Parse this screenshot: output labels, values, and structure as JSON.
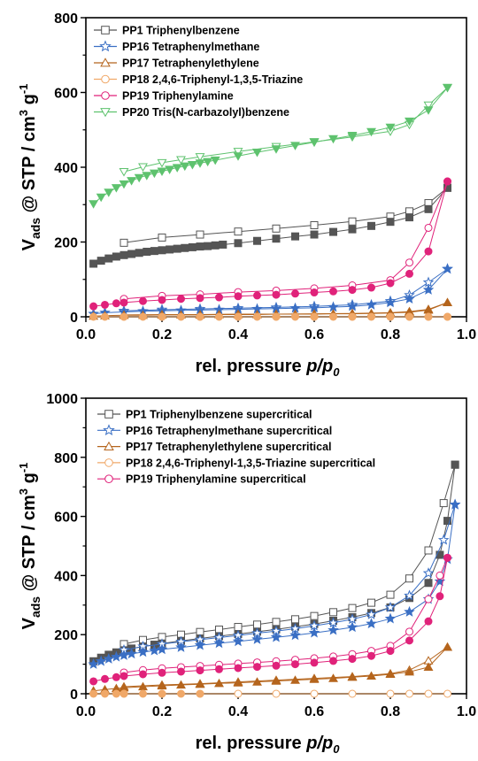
{
  "chart_data": [
    {
      "type": "scatter",
      "xlabel": "rel. pressure p/p0",
      "xlabel_parts": {
        "prefix": "rel. pressure ",
        "p": "p",
        "slash": "/",
        "p0": "p",
        "sub0": "0"
      },
      "ylabel": "Vads @ STP / cm3 g-1",
      "ylabel_parts": {
        "V": "V",
        "ads": "ads",
        "mid": " @ STP / cm",
        "sup3": "3",
        "g": " g",
        "supm1": "-1"
      },
      "xlim": [
        0,
        1.0
      ],
      "ylim": [
        0,
        800
      ],
      "xticks": [
        "0.0",
        "0.2",
        "0.4",
        "0.6",
        "0.8",
        "1.0"
      ],
      "yticks": [
        "0",
        "200",
        "400",
        "600",
        "800"
      ],
      "legend_position": "top-left",
      "series": [
        {
          "name": "PP1 Triphenylbenzene",
          "color": "#555555",
          "marker": "square",
          "ads_x": [
            0.02,
            0.04,
            0.06,
            0.08,
            0.1,
            0.12,
            0.14,
            0.16,
            0.18,
            0.2,
            0.22,
            0.24,
            0.26,
            0.28,
            0.3,
            0.32,
            0.34,
            0.36,
            0.4,
            0.45,
            0.5,
            0.55,
            0.6,
            0.65,
            0.7,
            0.75,
            0.8,
            0.85,
            0.9,
            0.95
          ],
          "ads_y": [
            142,
            150,
            156,
            161,
            165,
            168,
            171,
            174,
            176,
            178,
            180,
            182,
            184,
            186,
            188,
            189,
            191,
            193,
            197,
            203,
            209,
            215,
            220,
            227,
            234,
            243,
            254,
            266,
            288,
            345
          ],
          "des_x": [
            0.1,
            0.2,
            0.3,
            0.4,
            0.5,
            0.6,
            0.7,
            0.8,
            0.85,
            0.9,
            0.95
          ],
          "des_y": [
            198,
            212,
            220,
            228,
            236,
            245,
            255,
            268,
            282,
            304,
            345
          ]
        },
        {
          "name": "PP16 Tetraphenylmethane",
          "color": "#3a6fc4",
          "marker": "star",
          "ads_x": [
            0.02,
            0.05,
            0.1,
            0.15,
            0.2,
            0.25,
            0.3,
            0.35,
            0.4,
            0.45,
            0.5,
            0.55,
            0.6,
            0.65,
            0.7,
            0.75,
            0.8,
            0.85,
            0.9,
            0.95
          ],
          "ads_y": [
            8,
            11,
            13,
            15,
            16,
            17,
            18,
            19,
            20,
            21,
            22,
            23,
            24,
            26,
            28,
            32,
            38,
            48,
            72,
            128
          ],
          "des_x": [
            0.1,
            0.2,
            0.3,
            0.4,
            0.5,
            0.6,
            0.7,
            0.8,
            0.85,
            0.9,
            0.95
          ],
          "des_y": [
            16,
            19,
            21,
            23,
            25,
            28,
            32,
            42,
            58,
            92,
            128
          ]
        },
        {
          "name": "PP17 Tetraphenylethylene",
          "color": "#b5651d",
          "marker": "triangle",
          "ads_x": [
            0.02,
            0.05,
            0.1,
            0.15,
            0.2,
            0.25,
            0.3,
            0.35,
            0.4,
            0.45,
            0.5,
            0.55,
            0.6,
            0.65,
            0.7,
            0.75,
            0.8,
            0.85,
            0.9,
            0.95
          ],
          "ads_y": [
            2,
            3,
            4,
            4,
            5,
            5,
            5,
            6,
            6,
            6,
            7,
            7,
            7,
            8,
            8,
            9,
            10,
            12,
            18,
            38
          ],
          "des_x": [
            0.1,
            0.2,
            0.3,
            0.4,
            0.5,
            0.6,
            0.7,
            0.8,
            0.85,
            0.9,
            0.95
          ],
          "des_y": [
            5,
            6,
            6,
            7,
            7,
            8,
            9,
            11,
            14,
            20,
            38
          ]
        },
        {
          "name": "PP18 2,4,6-Triphenyl-1,3,5-Triazine",
          "color": "#f0a868",
          "marker": "circle",
          "ads_x": [
            0.02,
            0.05,
            0.1,
            0.15,
            0.2,
            0.25,
            0.3,
            0.35,
            0.4,
            0.45,
            0.5,
            0.55,
            0.6,
            0.65,
            0.7,
            0.75,
            0.8,
            0.85,
            0.9,
            0.95
          ],
          "ads_y": [
            0,
            0,
            0,
            0,
            0,
            0,
            0,
            0,
            0,
            0,
            0,
            0,
            0,
            0,
            0,
            0,
            0,
            0,
            0,
            0
          ],
          "des_x": [
            0.1,
            0.2,
            0.3,
            0.4,
            0.5,
            0.6,
            0.7,
            0.8,
            0.85,
            0.9,
            0.95
          ],
          "des_y": [
            0,
            0,
            0,
            0,
            0,
            0,
            0,
            0,
            0,
            0,
            0
          ]
        },
        {
          "name": "PP19 Triphenylamine",
          "color": "#e0227a",
          "marker": "circle",
          "ads_x": [
            0.02,
            0.05,
            0.08,
            0.1,
            0.15,
            0.2,
            0.25,
            0.3,
            0.35,
            0.4,
            0.45,
            0.5,
            0.55,
            0.6,
            0.65,
            0.7,
            0.75,
            0.8,
            0.85,
            0.9,
            0.95
          ],
          "ads_y": [
            28,
            32,
            36,
            38,
            42,
            45,
            48,
            50,
            52,
            55,
            57,
            59,
            62,
            65,
            68,
            72,
            78,
            90,
            115,
            175,
            362
          ],
          "des_x": [
            0.1,
            0.2,
            0.3,
            0.4,
            0.5,
            0.6,
            0.7,
            0.8,
            0.85,
            0.9,
            0.95
          ],
          "des_y": [
            48,
            56,
            60,
            66,
            70,
            76,
            84,
            98,
            145,
            238,
            362
          ]
        },
        {
          "name": "PP20 Tris(N-carbazolyl)benzene",
          "color": "#5ec26e",
          "marker": "triangle-down",
          "ads_x": [
            0.02,
            0.04,
            0.06,
            0.08,
            0.1,
            0.12,
            0.14,
            0.16,
            0.18,
            0.2,
            0.22,
            0.24,
            0.26,
            0.28,
            0.3,
            0.32,
            0.34,
            0.4,
            0.45,
            0.5,
            0.55,
            0.6,
            0.65,
            0.7,
            0.75,
            0.8,
            0.85,
            0.9,
            0.95
          ],
          "ads_y": [
            302,
            320,
            333,
            345,
            355,
            364,
            372,
            378,
            384,
            389,
            394,
            399,
            403,
            407,
            411,
            415,
            419,
            430,
            440,
            449,
            458,
            467,
            476,
            485,
            495,
            507,
            523,
            553,
            613
          ],
          "des_x": [
            0.1,
            0.15,
            0.2,
            0.25,
            0.3,
            0.4,
            0.5,
            0.6,
            0.7,
            0.8,
            0.85,
            0.9,
            0.95
          ],
          "des_y": [
            388,
            401,
            412,
            420,
            428,
            442,
            455,
            468,
            481,
            496,
            514,
            566,
            613
          ]
        }
      ]
    },
    {
      "type": "scatter",
      "xlabel": "rel. pressure p/p0",
      "xlabel_parts": {
        "prefix": "rel. pressure ",
        "p": "p",
        "slash": "/",
        "p0": "p",
        "sub0": "0"
      },
      "ylabel": "Vads @ STP / cm3 g-1",
      "ylabel_parts": {
        "V": "V",
        "ads": "ads",
        "mid": " @ STP / cm",
        "sup3": "3",
        "g": " g",
        "supm1": "-1"
      },
      "xlim": [
        0,
        1.0
      ],
      "ylim": [
        0,
        1000
      ],
      "xticks": [
        "0.0",
        "0.2",
        "0.4",
        "0.6",
        "0.8",
        "1.0"
      ],
      "yticks": [
        "0",
        "200",
        "400",
        "600",
        "800",
        "1000"
      ],
      "legend_position": "top-left",
      "series": [
        {
          "name": "PP1 Triphenylbenzene supercritical",
          "color": "#555555",
          "marker": "square",
          "ads_x": [
            0.02,
            0.04,
            0.06,
            0.08,
            0.1,
            0.12,
            0.15,
            0.18,
            0.2,
            0.25,
            0.3,
            0.35,
            0.4,
            0.45,
            0.5,
            0.55,
            0.6,
            0.65,
            0.7,
            0.75,
            0.8,
            0.85,
            0.9,
            0.93,
            0.95,
            0.97
          ],
          "ads_y": [
            110,
            122,
            132,
            140,
            147,
            153,
            160,
            166,
            170,
            179,
            187,
            195,
            202,
            210,
            218,
            227,
            236,
            247,
            259,
            273,
            292,
            324,
            375,
            470,
            585,
            775
          ],
          "des_x": [
            0.1,
            0.15,
            0.2,
            0.25,
            0.3,
            0.35,
            0.4,
            0.45,
            0.5,
            0.55,
            0.6,
            0.65,
            0.7,
            0.75,
            0.8,
            0.85,
            0.9,
            0.94,
            0.97
          ],
          "des_y": [
            168,
            182,
            192,
            200,
            209,
            217,
            226,
            234,
            243,
            252,
            263,
            276,
            290,
            308,
            335,
            390,
            485,
            645,
            775
          ]
        },
        {
          "name": "PP16 Tetraphenylmethane supercritical",
          "color": "#3a6fc4",
          "marker": "star",
          "ads_x": [
            0.02,
            0.04,
            0.06,
            0.08,
            0.1,
            0.12,
            0.15,
            0.18,
            0.2,
            0.25,
            0.3,
            0.35,
            0.4,
            0.45,
            0.5,
            0.55,
            0.6,
            0.65,
            0.7,
            0.75,
            0.8,
            0.85,
            0.9,
            0.93,
            0.95,
            0.97
          ],
          "ads_y": [
            100,
            110,
            118,
            125,
            130,
            135,
            141,
            146,
            150,
            157,
            164,
            171,
            177,
            184,
            191,
            198,
            206,
            215,
            225,
            237,
            254,
            277,
            320,
            380,
            455,
            640
          ],
          "des_x": [
            0.1,
            0.15,
            0.2,
            0.25,
            0.3,
            0.35,
            0.4,
            0.45,
            0.5,
            0.55,
            0.6,
            0.65,
            0.7,
            0.75,
            0.8,
            0.85,
            0.9,
            0.94,
            0.97
          ],
          "des_y": [
            148,
            160,
            168,
            176,
            183,
            190,
            197,
            205,
            212,
            220,
            230,
            240,
            252,
            268,
            292,
            332,
            408,
            520,
            640
          ]
        },
        {
          "name": "PP17 Tetraphenylethylene supercritical",
          "color": "#b5651d",
          "marker": "triangle",
          "ads_x": [
            0.02,
            0.05,
            0.08,
            0.1,
            0.15,
            0.2,
            0.25,
            0.3,
            0.35,
            0.4,
            0.45,
            0.5,
            0.55,
            0.6,
            0.65,
            0.7,
            0.75,
            0.8,
            0.85,
            0.9,
            0.95
          ],
          "ads_y": [
            10,
            14,
            18,
            20,
            24,
            27,
            30,
            32,
            35,
            37,
            40,
            43,
            46,
            49,
            52,
            56,
            60,
            66,
            74,
            90,
            158
          ],
          "des_x": [
            0.1,
            0.2,
            0.3,
            0.4,
            0.5,
            0.6,
            0.7,
            0.8,
            0.85,
            0.9,
            0.95
          ],
          "des_y": [
            24,
            30,
            34,
            40,
            46,
            52,
            58,
            68,
            80,
            112,
            158
          ]
        },
        {
          "name": "PP18 2,4,6-Triphenyl-1,3,5-Triazine supercritical",
          "color": "#f0a868",
          "marker": "circle",
          "ads_x": [
            0.02,
            0.05,
            0.08,
            0.1,
            0.15,
            0.2,
            0.25,
            0.3
          ],
          "ads_y": [
            0,
            0,
            0,
            0,
            0,
            0,
            0,
            0
          ],
          "des_x": [
            0.1,
            0.2,
            0.3,
            0.4,
            0.5,
            0.6,
            0.7,
            0.8,
            0.85,
            0.9,
            0.95
          ],
          "des_y": [
            0,
            0,
            0,
            0,
            0,
            0,
            0,
            0,
            0,
            0,
            0
          ]
        },
        {
          "name": "PP19 Triphenylamine supercritical",
          "color": "#e0227a",
          "marker": "circle",
          "ads_x": [
            0.02,
            0.05,
            0.08,
            0.1,
            0.15,
            0.2,
            0.25,
            0.3,
            0.35,
            0.4,
            0.45,
            0.5,
            0.55,
            0.6,
            0.65,
            0.7,
            0.75,
            0.8,
            0.85,
            0.9,
            0.93,
            0.95
          ],
          "ads_y": [
            42,
            50,
            56,
            60,
            66,
            71,
            75,
            79,
            83,
            87,
            91,
            95,
            100,
            105,
            111,
            118,
            128,
            145,
            180,
            245,
            330,
            460
          ],
          "des_x": [
            0.1,
            0.15,
            0.2,
            0.25,
            0.3,
            0.35,
            0.4,
            0.45,
            0.5,
            0.55,
            0.6,
            0.65,
            0.7,
            0.75,
            0.8,
            0.85,
            0.9,
            0.93,
            0.95
          ],
          "des_y": [
            72,
            80,
            86,
            90,
            94,
            98,
            102,
            106,
            110,
            115,
            120,
            126,
            134,
            145,
            162,
            210,
            320,
            400,
            460
          ]
        }
      ]
    }
  ]
}
